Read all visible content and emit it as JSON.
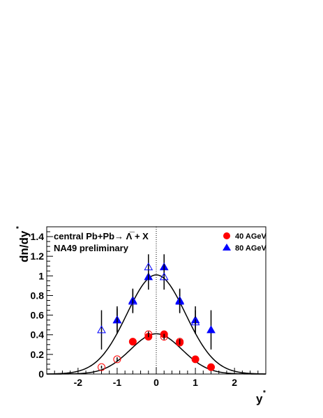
{
  "chart_data": {
    "type": "scatter",
    "title": "",
    "xlabel": "y*",
    "ylabel": "dn/dy*",
    "xlim": [
      -2.8,
      2.8
    ],
    "ylim": [
      0,
      1.5
    ],
    "x_ticks": [
      -2,
      -1,
      0,
      1,
      2
    ],
    "y_ticks": [
      0,
      0.2,
      0.4,
      0.6,
      0.8,
      1,
      1.2,
      1.4
    ],
    "x_tick_labels": [
      "-2",
      "-1",
      "0",
      "1",
      "2"
    ],
    "y_tick_labels": [
      "0",
      "0.2",
      "0.4",
      "0.6",
      "0.8",
      "1",
      "1.2",
      "1.4"
    ],
    "annotations": [
      "central Pb+Pb→ Λ̅ + X",
      "NA49 preliminary"
    ],
    "legend_position": "top-right",
    "series": [
      {
        "name": "40 AGeV",
        "color": "#ff0000",
        "marker": "circle",
        "points": [
          {
            "x": -0.6,
            "y": 0.33,
            "err": 0.03,
            "filled": true
          },
          {
            "x": -0.2,
            "y": 0.38,
            "err": 0.03,
            "filled": true
          },
          {
            "x": 0.2,
            "y": 0.405,
            "err": 0.03,
            "filled": true
          },
          {
            "x": 0.6,
            "y": 0.32,
            "err": 0.03,
            "filled": true
          },
          {
            "x": 1.0,
            "y": 0.15,
            "err": 0.02,
            "filled": true
          },
          {
            "x": 1.4,
            "y": 0.07,
            "err": 0.015,
            "filled": true
          },
          {
            "x": -1.4,
            "y": 0.07,
            "err": 0.015,
            "filled": false
          },
          {
            "x": -1.0,
            "y": 0.15,
            "err": 0.02,
            "filled": false
          },
          {
            "x": -0.2,
            "y": 0.405,
            "err": 0.03,
            "filled": false
          },
          {
            "x": 0.2,
            "y": 0.38,
            "err": 0.03,
            "filled": false
          },
          {
            "x": 0.6,
            "y": 0.33,
            "err": 0.03,
            "filled": false
          }
        ],
        "fit": {
          "amplitude": 0.41,
          "sigma": 0.66
        }
      },
      {
        "name": "80 AGeV",
        "color": "#0000ff",
        "marker": "triangle",
        "points": [
          {
            "x": -1.0,
            "y": 0.55,
            "err": 0.12,
            "filled": true
          },
          {
            "x": -0.6,
            "y": 0.75,
            "err": 0.12,
            "filled": true
          },
          {
            "x": -0.2,
            "y": 0.99,
            "err": 0.13,
            "filled": true
          },
          {
            "x": 0.2,
            "y": 1.09,
            "err": 0.13,
            "filled": true
          },
          {
            "x": 0.6,
            "y": 0.74,
            "err": 0.12,
            "filled": true
          },
          {
            "x": 1.0,
            "y": 0.55,
            "err": 0.14,
            "filled": true
          },
          {
            "x": 1.4,
            "y": 0.45,
            "err": 0.2,
            "filled": true
          },
          {
            "x": -1.4,
            "y": 0.45,
            "err": 0.2,
            "filled": false
          },
          {
            "x": -1.0,
            "y": 0.55,
            "err": 0.14,
            "filled": false
          },
          {
            "x": -0.6,
            "y": 0.74,
            "err": 0.12,
            "filled": false
          },
          {
            "x": -0.2,
            "y": 1.09,
            "err": 0.13,
            "filled": false
          },
          {
            "x": 0.2,
            "y": 0.99,
            "err": 0.13,
            "filled": false
          },
          {
            "x": 0.6,
            "y": 0.75,
            "err": 0.12,
            "filled": false
          },
          {
            "x": 1.0,
            "y": 0.53,
            "err": 0.12,
            "filled": false
          }
        ],
        "fit": {
          "amplitude": 1.01,
          "sigma": 0.75
        }
      }
    ]
  }
}
